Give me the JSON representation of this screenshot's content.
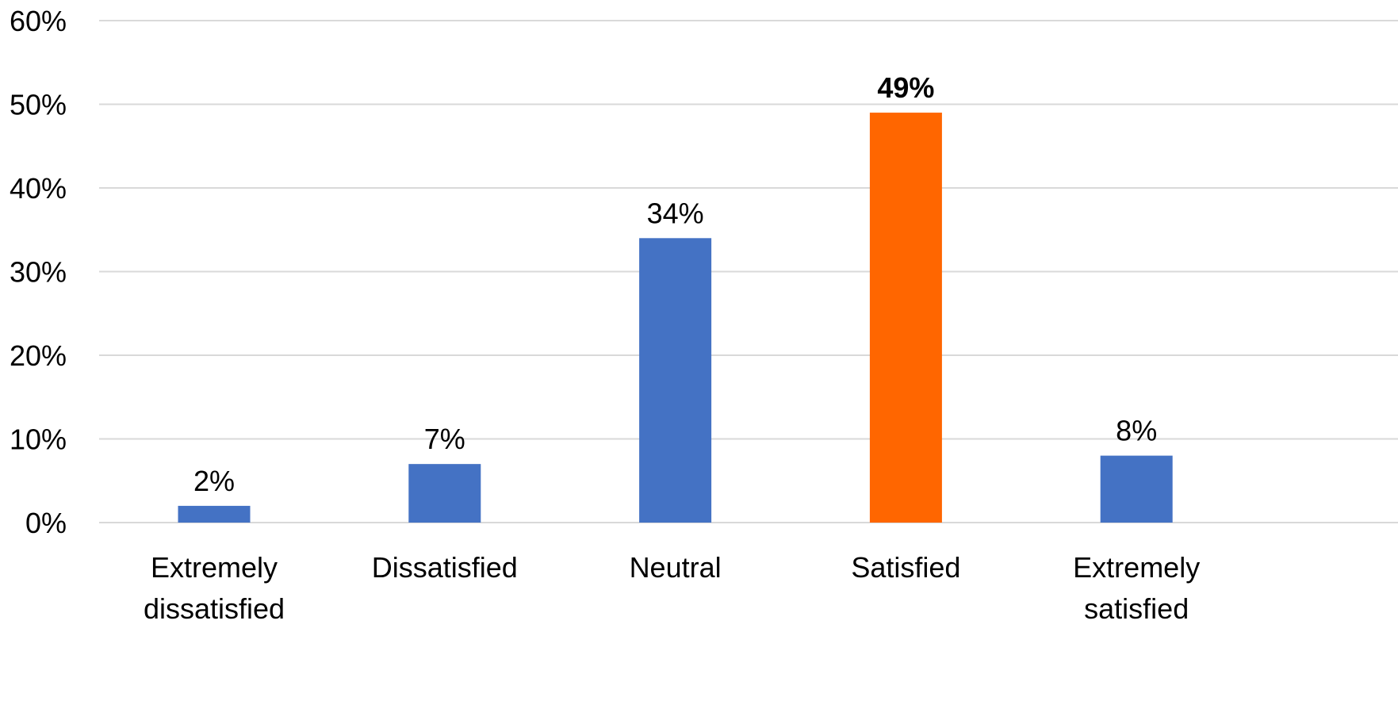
{
  "chart_data": {
    "type": "bar",
    "title": "",
    "xlabel": "",
    "ylabel": "",
    "categories": [
      [
        "Extremely",
        "dissatisfied"
      ],
      [
        "Dissatisfied"
      ],
      [
        "Neutral"
      ],
      [
        "Satisfied"
      ],
      [
        "Extremely",
        "satisfied"
      ]
    ],
    "values": [
      2,
      7,
      34,
      49,
      8
    ],
    "data_labels": [
      "2%",
      "7%",
      "34%",
      "49%",
      "8%"
    ],
    "highlight_index": 3,
    "ylim": [
      0,
      60
    ],
    "yticks": [
      0,
      10,
      20,
      30,
      40,
      50,
      60
    ],
    "ytick_labels": [
      "0%",
      "10%",
      "20%",
      "30%",
      "40%",
      "50%",
      "60%"
    ],
    "grid": true,
    "legend": "none",
    "colors": {
      "bar": "#4472C4",
      "highlight": "#FF6600",
      "grid": "#D9D9D9"
    }
  }
}
